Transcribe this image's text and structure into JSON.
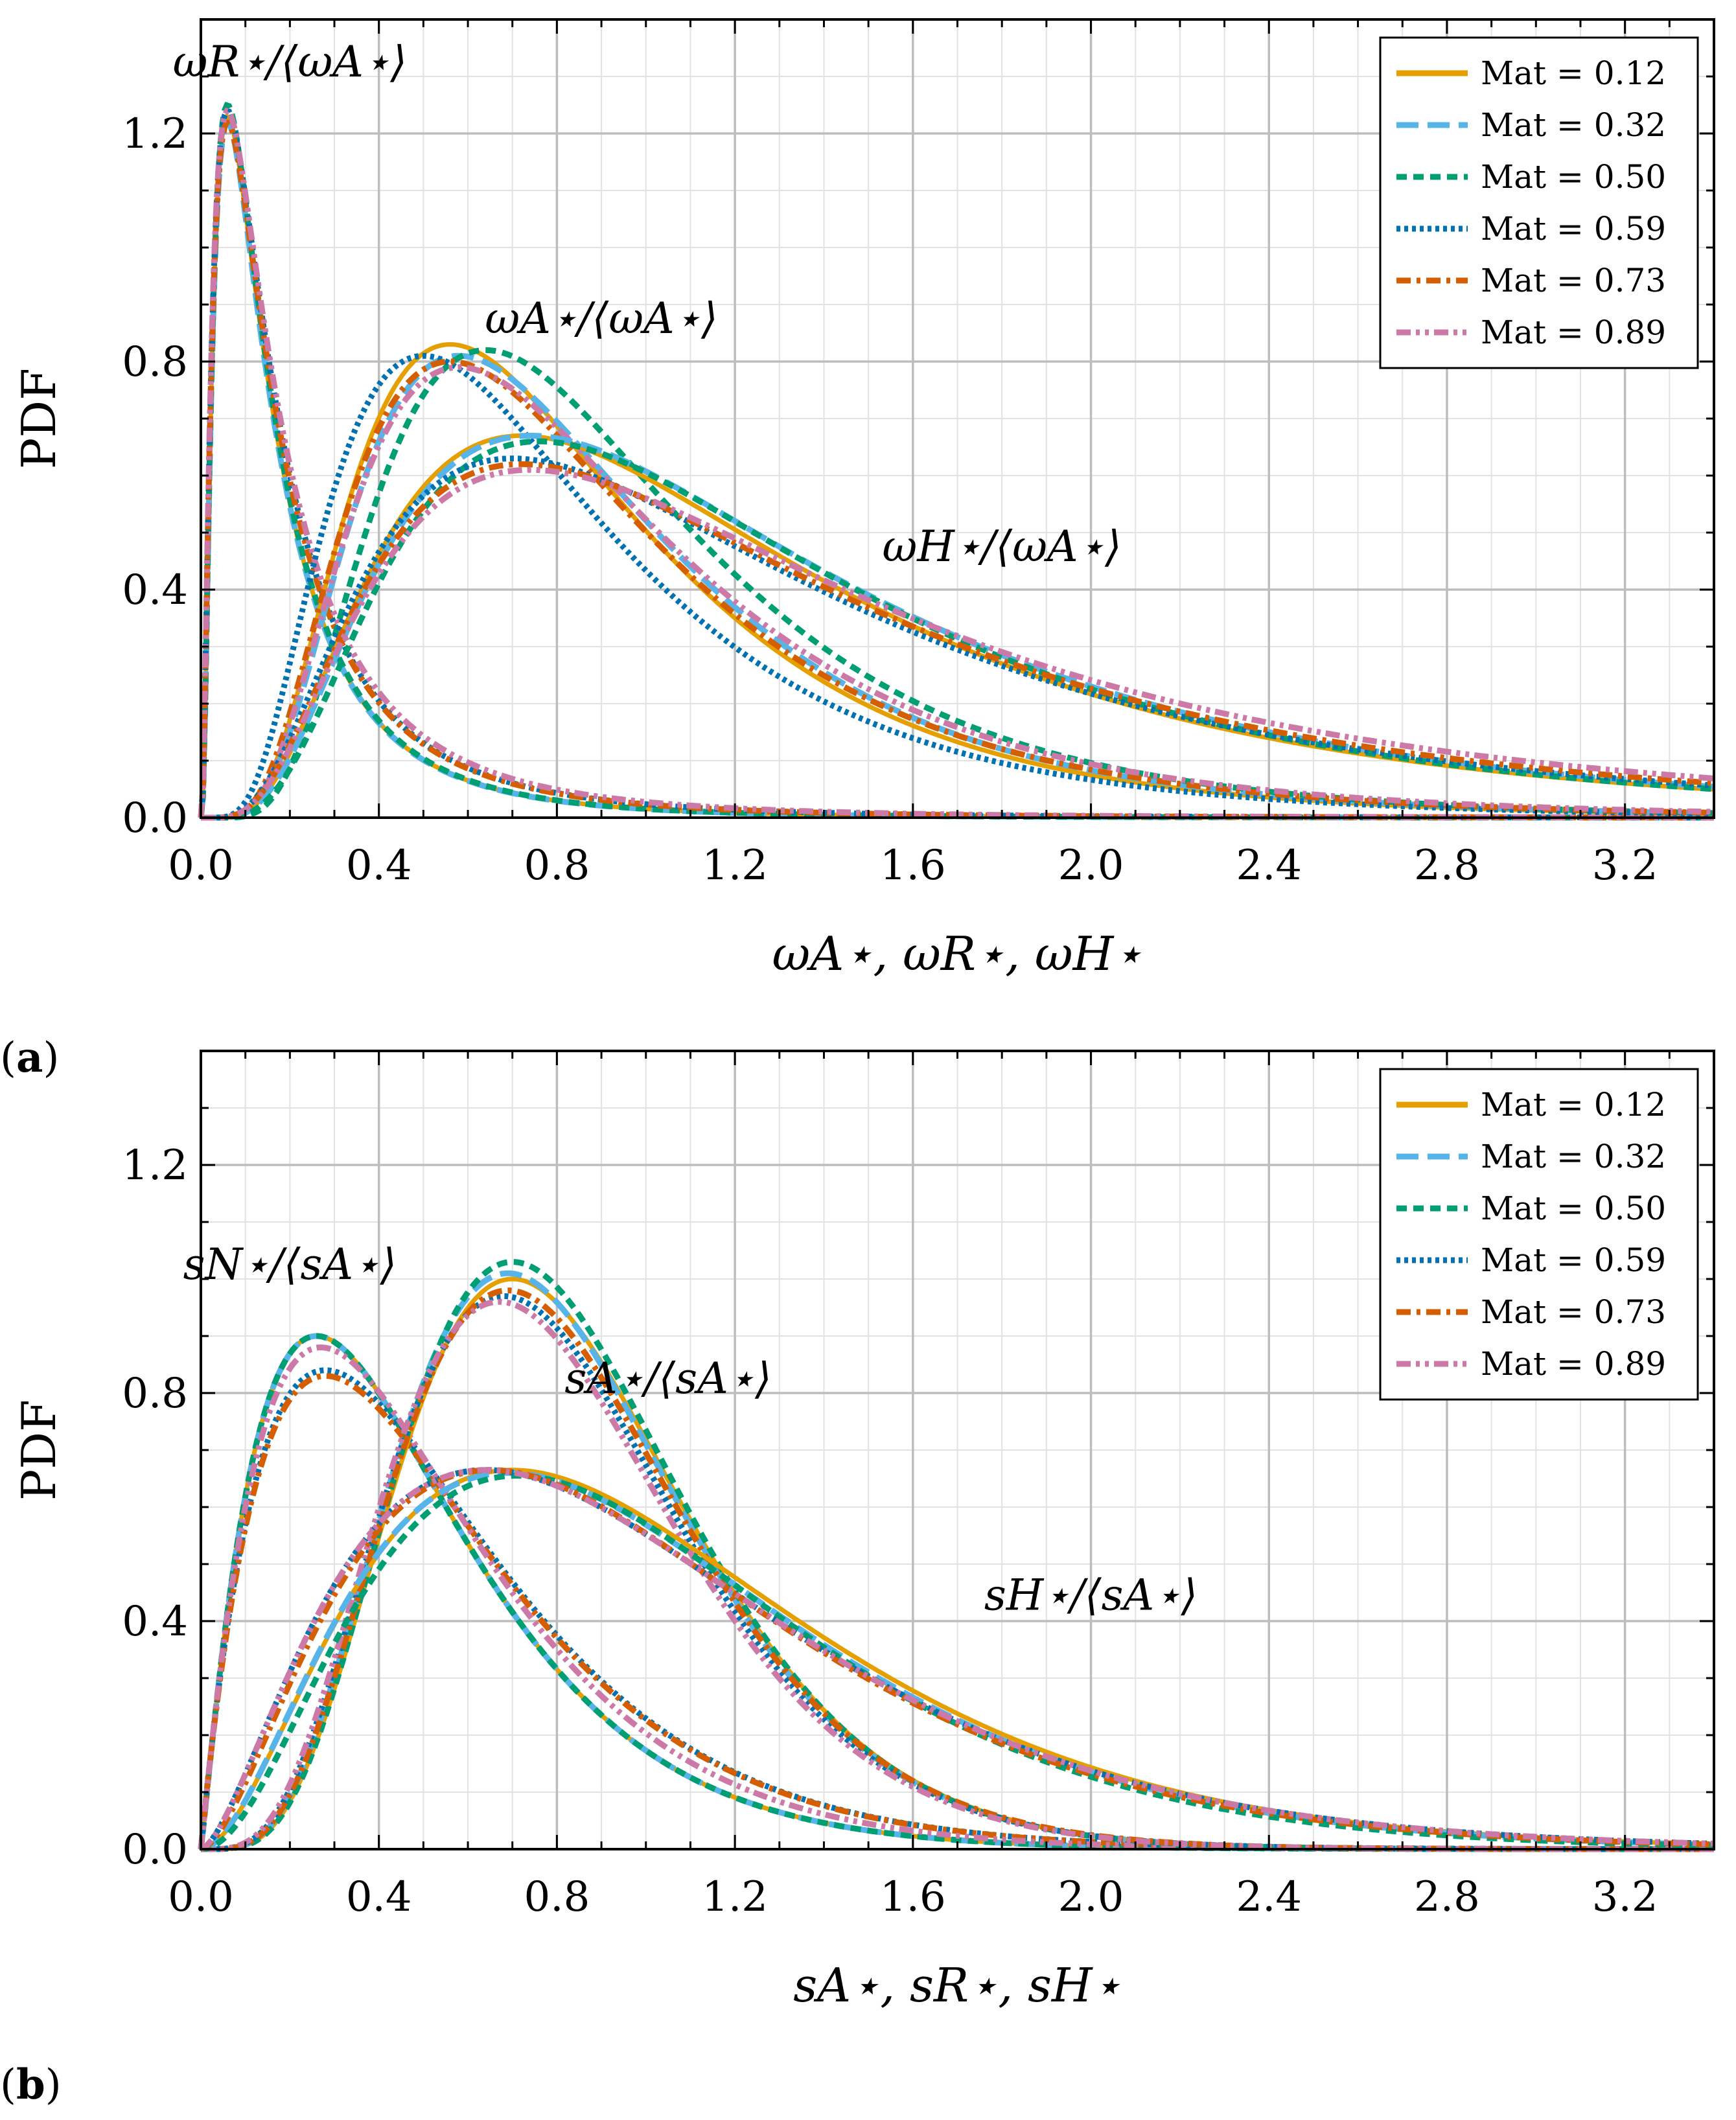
{
  "chart_data": [
    {
      "type": "line",
      "panel": "a",
      "panel_label": "a",
      "ylabel": "PDF",
      "xlabel": "ωA⋆, ωR⋆, ωH⋆",
      "xlim": [
        0,
        3.4
      ],
      "ylim": [
        0,
        1.4
      ],
      "xticks": [
        "0.0",
        "0.4",
        "0.8",
        "1.2",
        "1.6",
        "2.0",
        "2.4",
        "2.8",
        "3.2"
      ],
      "yticks": [
        "0.0",
        "0.4",
        "0.8",
        "1.2"
      ],
      "grid": true,
      "legend_position": "top-right",
      "legend": [
        {
          "label": "Mat = 0.12",
          "color": "#E69F00",
          "style": "solid"
        },
        {
          "label": "Mat = 0.32",
          "color": "#56B4E9",
          "style": "dashed"
        },
        {
          "label": "Mat = 0.50",
          "color": "#009E73",
          "style": "densely-dashed"
        },
        {
          "label": "Mat = 0.59",
          "color": "#0072B2",
          "style": "dotted"
        },
        {
          "label": "Mat = 0.73",
          "color": "#D55E00",
          "style": "dash-dot"
        },
        {
          "label": "Mat = 0.89",
          "color": "#CC79A7",
          "style": "dash-dot-dot"
        }
      ],
      "annotations": [
        {
          "text": "ωR⋆/⟨ωA⋆⟩",
          "x": 0.2,
          "y": 1.3
        },
        {
          "text": "ωA⋆/⟨ωA⋆⟩",
          "x": 0.9,
          "y": 0.85
        },
        {
          "text": "ωH⋆/⟨ωA⋆⟩",
          "x": 1.8,
          "y": 0.45
        }
      ],
      "families": [
        {
          "name": "ωR⋆/⟨ωA⋆⟩",
          "shape": "lognormal",
          "peaks": [
            1.23,
            1.22,
            1.25,
            1.24,
            1.22,
            1.24
          ],
          "modes": [
            0.06,
            0.06,
            0.06,
            0.06,
            0.06,
            0.06
          ],
          "sigmas": [
            0.95,
            0.95,
            0.95,
            1.0,
            1.0,
            1.02
          ],
          "tails": [
            0.0,
            0.0,
            0.0,
            0.0,
            0.0,
            0.0
          ]
        },
        {
          "name": "ωA⋆/⟨ωA⋆⟩",
          "shape": "lognormal",
          "peaks": [
            0.83,
            0.81,
            0.82,
            0.81,
            0.8,
            0.79
          ],
          "modes": [
            0.56,
            0.58,
            0.64,
            0.5,
            0.56,
            0.58
          ],
          "sigmas": [
            0.58,
            0.58,
            0.55,
            0.62,
            0.6,
            0.6
          ],
          "tails": [
            0.0,
            0.0,
            0.0,
            0.0,
            0.0,
            0.0
          ]
        },
        {
          "name": "ωH⋆/⟨ωA⋆⟩",
          "shape": "lognormal",
          "peaks": [
            0.67,
            0.67,
            0.66,
            0.63,
            0.62,
            0.61
          ],
          "modes": [
            0.72,
            0.74,
            0.76,
            0.7,
            0.72,
            0.74
          ],
          "sigmas": [
            0.68,
            0.68,
            0.66,
            0.72,
            0.72,
            0.73
          ],
          "tails": [
            0.0,
            0.0,
            0.0,
            0.0,
            0.0,
            0.0
          ]
        }
      ]
    },
    {
      "type": "line",
      "panel": "b",
      "panel_label": "b",
      "ylabel": "PDF",
      "xlabel": "sA⋆, sR⋆, sH⋆",
      "xlim": [
        0,
        3.4
      ],
      "ylim": [
        0,
        1.4
      ],
      "xticks": [
        "0.0",
        "0.4",
        "0.8",
        "1.2",
        "1.6",
        "2.0",
        "2.4",
        "2.8",
        "3.2"
      ],
      "yticks": [
        "0.0",
        "0.4",
        "0.8",
        "1.2"
      ],
      "grid": true,
      "legend_position": "top-right",
      "legend": [
        {
          "label": "Mat = 0.12",
          "color": "#E69F00",
          "style": "solid"
        },
        {
          "label": "Mat = 0.32",
          "color": "#56B4E9",
          "style": "dashed"
        },
        {
          "label": "Mat = 0.50",
          "color": "#009E73",
          "style": "densely-dashed"
        },
        {
          "label": "Mat = 0.59",
          "color": "#0072B2",
          "style": "dotted"
        },
        {
          "label": "Mat = 0.73",
          "color": "#D55E00",
          "style": "dash-dot"
        },
        {
          "label": "Mat = 0.89",
          "color": "#CC79A7",
          "style": "dash-dot-dot"
        }
      ],
      "annotations": [
        {
          "text": "sN⋆/⟨sA⋆⟩",
          "x": 0.2,
          "y": 1.0
        },
        {
          "text": "sA⋆/⟨sA⋆⟩",
          "x": 1.05,
          "y": 0.8
        },
        {
          "text": "sH⋆/⟨sA⋆⟩",
          "x": 2.0,
          "y": 0.42
        }
      ],
      "families": [
        {
          "name": "sN⋆/⟨sA⋆⟩",
          "shape": "gamma",
          "peaks": [
            0.9,
            0.9,
            0.9,
            0.84,
            0.83,
            0.88
          ],
          "modes": [
            0.26,
            0.26,
            0.26,
            0.28,
            0.28,
            0.27
          ],
          "sigmas": [
            2.1,
            2.1,
            2.1,
            2.0,
            2.0,
            2.05
          ],
          "tails": [
            0.0,
            0.0,
            0.0,
            0.0,
            0.0,
            0.0
          ]
        },
        {
          "name": "sA⋆/⟨sA⋆⟩",
          "shape": "gamma",
          "peaks": [
            1.0,
            1.01,
            1.03,
            0.97,
            0.98,
            0.96
          ],
          "modes": [
            0.7,
            0.69,
            0.7,
            0.68,
            0.69,
            0.67
          ],
          "sigmas": [
            5.6,
            5.5,
            5.7,
            5.3,
            5.4,
            5.2
          ],
          "tails": [
            0.0,
            0.0,
            0.0,
            0.0,
            0.0,
            0.0
          ]
        },
        {
          "name": "sH⋆/⟨sA⋆⟩",
          "shape": "gamma",
          "peaks": [
            0.665,
            0.66,
            0.655,
            0.665,
            0.665,
            0.665
          ],
          "modes": [
            0.7,
            0.69,
            0.71,
            0.64,
            0.65,
            0.64
          ],
          "sigmas": [
            2.9,
            2.9,
            3.1,
            2.6,
            2.7,
            2.6
          ],
          "tails": [
            0.0,
            0.0,
            0.0,
            0.0,
            0.0,
            0.0
          ]
        }
      ]
    }
  ]
}
